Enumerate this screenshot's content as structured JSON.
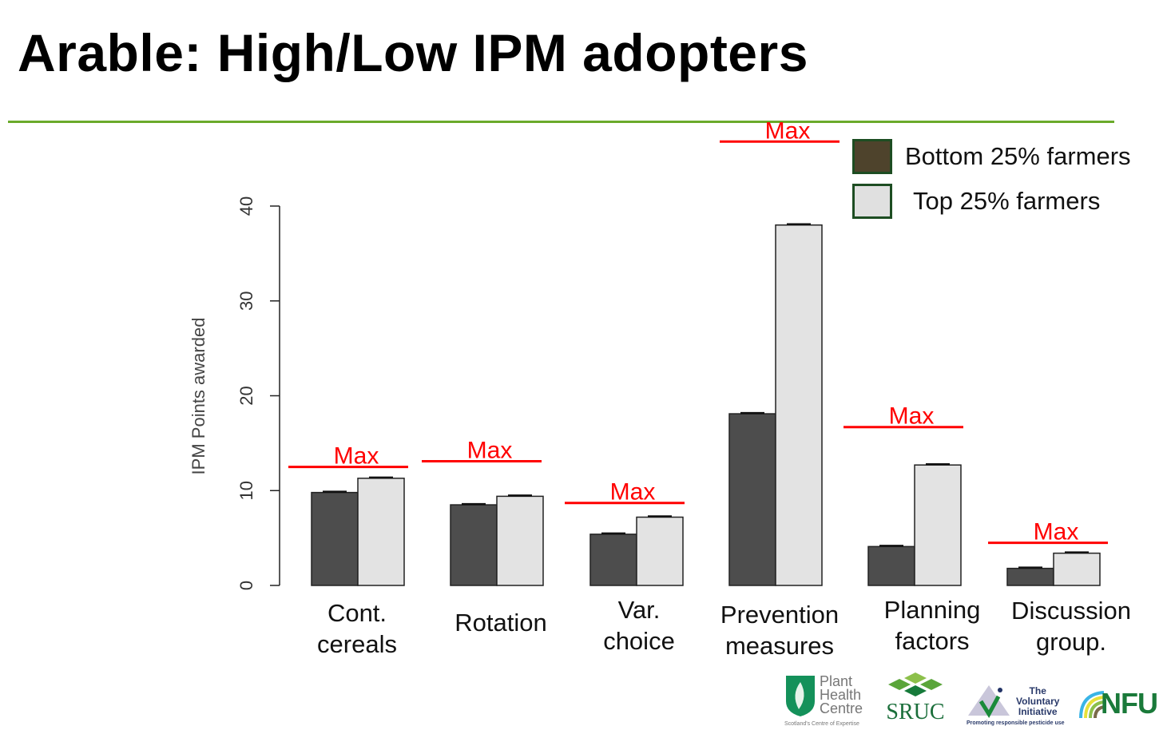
{
  "title": "Arable: High/Low IPM adopters",
  "legend": [
    {
      "label": "Bottom 25% farmers",
      "color": "#4e432c"
    },
    {
      "label": "Top 25% farmers",
      "color": "#e0e0e0"
    }
  ],
  "logos": {
    "phc": {
      "line1": "Plant",
      "line2": "Health",
      "line3": "Centre",
      "tagline": "Scotland's Centre of Expertise"
    },
    "sruc": "SRUC",
    "vi": {
      "line1": "The",
      "line2": "Voluntary",
      "line3": "Initiative",
      "tagline": "Promoting responsible pesticide use"
    },
    "nfu": "NFU"
  },
  "chart_data": {
    "type": "bar",
    "ylabel": "IPM Points awarded",
    "xlabel": "",
    "ylim": [
      0,
      40
    ],
    "yticks": [
      0,
      10,
      20,
      30,
      40
    ],
    "categories": [
      "Cont.\ncereals",
      "Rotation",
      "Var.\nchoice",
      "Prevention\nmeasures",
      "Planning\nfactors",
      "Discussion\ngroup."
    ],
    "series": [
      {
        "name": "Bottom 25% farmers",
        "color": "#4d4d4d",
        "values": [
          9.8,
          8.5,
          5.4,
          18.1,
          4.1,
          1.8
        ]
      },
      {
        "name": "Top 25% farmers",
        "color": "#e3e3e3",
        "values": [
          11.3,
          9.4,
          7.2,
          38.0,
          12.7,
          3.4
        ]
      }
    ],
    "max_label": "Max",
    "max_values": [
      12.5,
      13.1,
      8.7,
      46.8,
      16.7,
      4.5
    ],
    "max_color": "#ff0000",
    "legend_position": "top-right"
  }
}
